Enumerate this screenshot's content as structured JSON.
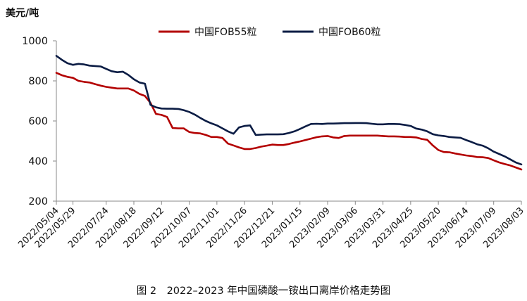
{
  "chart_data": {
    "type": "line",
    "ylabel": "美元/吨",
    "caption": "图 2　2022–2023 年中国磷酸一铵出口离岸价格走势图",
    "ylim": [
      200,
      1000
    ],
    "yticks": [
      200,
      400,
      600,
      800,
      1000
    ],
    "grid": false,
    "legend_position": "top",
    "tick_labels": [
      "2022/05/04",
      "2022/05/29",
      "2022/07/24",
      "2022/08/18",
      "2022/09/12",
      "2022/10/07",
      "2022/11/01",
      "2022/11/26",
      "2022/12/21",
      "2023/01/15",
      "2023/02/09",
      "2023/03/06",
      "2023/03/31",
      "2023/04/25",
      "2023/05/20",
      "2023/06/14",
      "2023/07/09",
      "2023/08/03"
    ],
    "tick_idx": [
      0,
      3,
      9,
      14,
      19,
      24,
      29,
      34,
      39,
      44,
      49,
      54,
      59,
      64,
      69,
      74,
      79,
      84
    ],
    "n_points": 85,
    "series": [
      {
        "name": "中国FOB55粒",
        "color": "#b30000",
        "values": [
          840,
          828,
          820,
          815,
          800,
          795,
          792,
          784,
          776,
          770,
          766,
          762,
          762,
          762,
          752,
          735,
          725,
          690,
          635,
          630,
          620,
          565,
          563,
          563,
          545,
          540,
          538,
          530,
          520,
          520,
          515,
          487,
          478,
          468,
          460,
          460,
          465,
          472,
          477,
          482,
          480,
          480,
          485,
          492,
          498,
          505,
          512,
          519,
          523,
          525,
          518,
          515,
          525,
          527,
          527,
          527,
          527,
          527,
          527,
          525,
          523,
          523,
          522,
          520,
          520,
          518,
          510,
          506,
          478,
          455,
          445,
          444,
          438,
          433,
          428,
          425,
          420,
          419,
          415,
          404,
          393,
          385,
          378,
          368,
          358
        ]
      },
      {
        "name": "中国FOB60粒",
        "color": "#0b1c44",
        "values": [
          925,
          905,
          888,
          880,
          885,
          882,
          876,
          874,
          872,
          860,
          848,
          843,
          846,
          830,
          808,
          792,
          786,
          680,
          668,
          662,
          661,
          661,
          660,
          654,
          645,
          632,
          615,
          600,
          588,
          578,
          563,
          548,
          536,
          568,
          575,
          578,
          530,
          532,
          533,
          533,
          533,
          534,
          540,
          548,
          560,
          573,
          585,
          586,
          585,
          587,
          587,
          588,
          589,
          589,
          590,
          590,
          589,
          586,
          583,
          583,
          585,
          585,
          584,
          580,
          575,
          562,
          557,
          548,
          534,
          528,
          525,
          520,
          518,
          516,
          505,
          495,
          484,
          477,
          464,
          447,
          435,
          423,
          408,
          393,
          383
        ]
      }
    ]
  }
}
